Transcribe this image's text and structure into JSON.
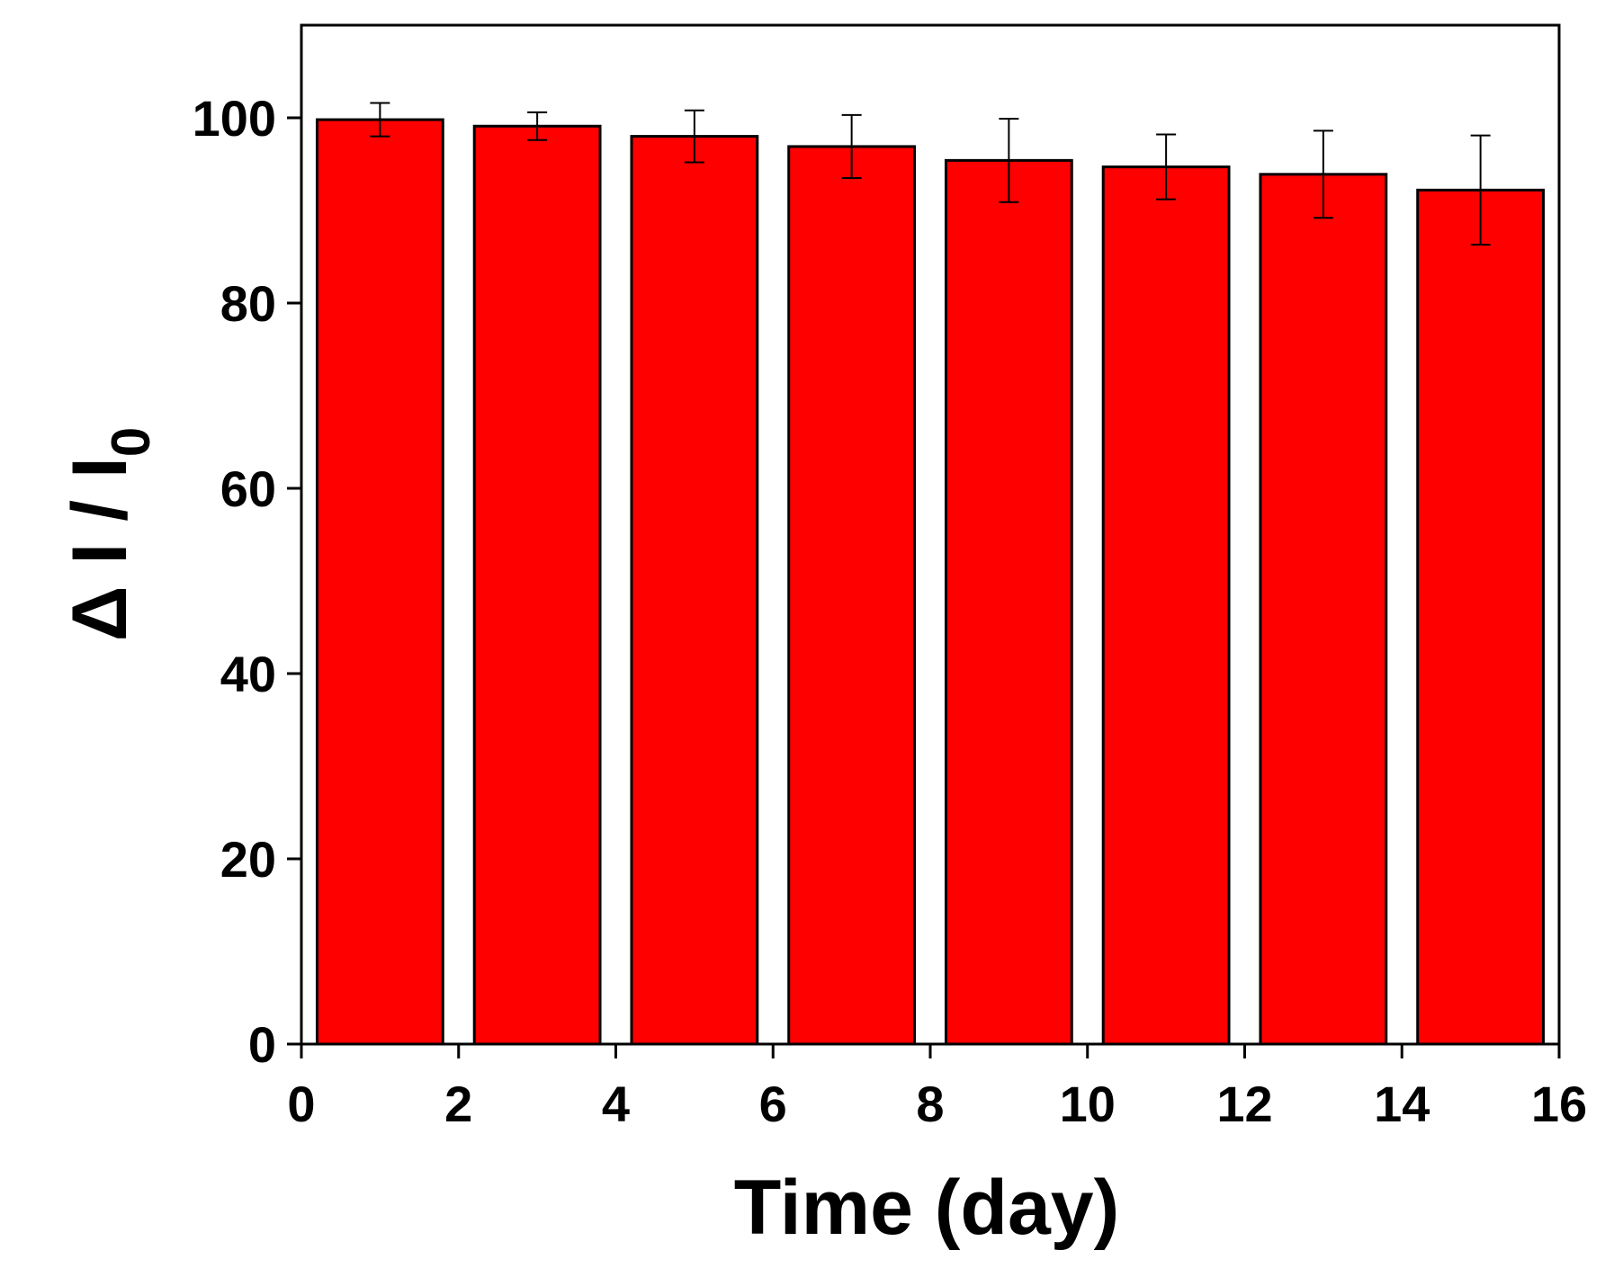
{
  "chart_data": {
    "type": "bar",
    "title": "",
    "xlabel": "Time (day)",
    "ylabel": {
      "main": "Δ I / I",
      "subscript": "0"
    },
    "x": [
      1,
      3,
      5,
      7,
      9,
      11,
      13,
      15
    ],
    "values": [
      99.8,
      99.1,
      98.0,
      96.9,
      95.4,
      94.7,
      93.9,
      92.2
    ],
    "errors": [
      1.8,
      1.5,
      2.8,
      3.4,
      4.5,
      3.5,
      4.7,
      5.9
    ],
    "bar_width": 1.6,
    "xlim": [
      0,
      16
    ],
    "ylim": [
      0,
      110
    ],
    "xticks": [
      0,
      2,
      4,
      6,
      8,
      10,
      12,
      14,
      16
    ],
    "yticks": [
      0,
      20,
      40,
      60,
      80,
      100
    ],
    "grid": false,
    "legend": "none",
    "colors": {
      "bar_fill": "#ff0000",
      "bar_stroke": "#000000",
      "axis": "#000000"
    }
  }
}
